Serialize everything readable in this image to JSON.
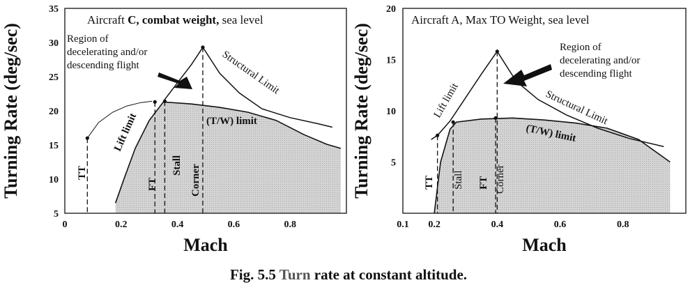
{
  "caption": {
    "fig_label": "Fig. 5.5",
    "text_part1": "Turn",
    "text_part2": " rate at constant altitude."
  },
  "chart_data": [
    {
      "id": "left",
      "type": "line",
      "title": "Aircraft C, combat weight, sea level",
      "xlabel": "Mach",
      "ylabel": "Turning Rate (deg/sec)",
      "xlim": [
        0,
        1.0
      ],
      "ylim": [
        5,
        35
      ],
      "xticks": [
        {
          "v": 0,
          "label": "0"
        },
        {
          "v": 0.2,
          "label": "0.2"
        },
        {
          "v": 0.4,
          "label": "0.4"
        },
        {
          "v": 0.6,
          "label": "0.6"
        },
        {
          "v": 0.8,
          "label": "0.8"
        }
      ],
      "yticks": [
        {
          "v": 5,
          "label": "5"
        },
        {
          "v": 10,
          "label": "10"
        },
        {
          "v": 15,
          "label": "15"
        },
        {
          "v": 20,
          "label": "20"
        },
        {
          "v": 25,
          "label": "25"
        },
        {
          "v": 30,
          "label": "30"
        },
        {
          "v": 35,
          "label": "35"
        }
      ],
      "series": [
        {
          "name": "Lift limit (thin)",
          "x": [
            0.08,
            0.12,
            0.17,
            0.22,
            0.27,
            0.31
          ],
          "y": [
            16.0,
            18.3,
            19.8,
            20.7,
            21.2,
            21.4
          ]
        },
        {
          "name": "Lift limit",
          "x": [
            0.35,
            0.4,
            0.45,
            0.49
          ],
          "y": [
            21.4,
            24.1,
            26.8,
            29.3
          ]
        },
        {
          "name": "Structural Limit",
          "x": [
            0.49,
            0.55,
            0.62,
            0.7,
            0.8,
            0.9,
            0.95
          ],
          "y": [
            29.3,
            25.5,
            22.6,
            20.3,
            19.0,
            18.1,
            17.6
          ]
        },
        {
          "name": "(T/W) limit",
          "x": [
            0.18,
            0.21,
            0.25,
            0.3,
            0.35,
            0.45,
            0.55,
            0.65,
            0.75,
            0.85,
            0.93,
            0.98
          ],
          "y": [
            6.5,
            10.0,
            14.5,
            18.6,
            21.3,
            21.0,
            20.5,
            19.8,
            18.6,
            16.5,
            15.1,
            14.5
          ]
        }
      ],
      "markers": [
        {
          "label": "TT",
          "x": 0.08,
          "y": 16.0
        },
        {
          "label": "FT",
          "x": 0.32,
          "y": 21.3
        },
        {
          "label": "Stall",
          "x": 0.355,
          "y": 21.4
        },
        {
          "label": "Corner",
          "x": 0.49,
          "y": 29.3
        }
      ],
      "annotations": {
        "region": [
          "Region of",
          "decelerating and/or",
          "descending flight"
        ],
        "lift_limit": "Lift limit",
        "structural_limit": "Structural Limit",
        "tw_limit": "(T/W) limit"
      }
    },
    {
      "id": "right",
      "type": "line",
      "title": "Aircraft A, Max TO Weight, sea level",
      "xlabel": "Mach",
      "ylabel": "Turning Rate (deg/sec)",
      "xlim": [
        0.1,
        1.0
      ],
      "ylim": [
        0,
        20
      ],
      "xticks": [
        {
          "v": 0.1,
          "label": "0.1"
        },
        {
          "v": 0.2,
          "label": "0.2"
        },
        {
          "v": 0.4,
          "label": "0.4"
        },
        {
          "v": 0.6,
          "label": "0.6"
        },
        {
          "v": 0.8,
          "label": "0.8"
        }
      ],
      "yticks": [
        {
          "v": 5,
          "label": "5"
        },
        {
          "v": 10,
          "label": "10"
        },
        {
          "v": 15,
          "label": "15"
        },
        {
          "v": 20,
          "label": "20"
        }
      ],
      "series": [
        {
          "name": "Lift limit",
          "x": [
            0.19,
            0.21,
            0.25,
            0.3,
            0.35,
            0.4
          ],
          "y": [
            7.2,
            7.6,
            9.0,
            11.3,
            13.6,
            15.8
          ]
        },
        {
          "name": "Structural Limit",
          "x": [
            0.4,
            0.46,
            0.53,
            0.62,
            0.72,
            0.82,
            0.93
          ],
          "y": [
            15.8,
            12.9,
            11.1,
            9.6,
            8.3,
            7.3,
            6.5
          ]
        },
        {
          "name": "(T/W) limit",
          "x": [
            0.2,
            0.22,
            0.25,
            0.27,
            0.35,
            0.45,
            0.55,
            0.65,
            0.75,
            0.85,
            0.95
          ],
          "y": [
            0.0,
            5.0,
            8.2,
            8.9,
            9.2,
            9.3,
            9.1,
            8.8,
            8.3,
            7.2,
            5.0
          ]
        }
      ],
      "markers": [
        {
          "label": "TT",
          "x": 0.21,
          "y": 7.6
        },
        {
          "label": "Stall",
          "x": 0.26,
          "y": 8.9
        },
        {
          "label": "FT",
          "x": 0.395,
          "y": 9.3
        },
        {
          "label": "Corner",
          "x": 0.4,
          "y": 15.8
        }
      ],
      "annotations": {
        "region": [
          "Region of",
          "decelerating and/or",
          "descending flight"
        ],
        "lift_limit": "Lift limit",
        "structural_limit": "Structural Limit",
        "tw_limit": "(T/W) limit"
      }
    }
  ]
}
